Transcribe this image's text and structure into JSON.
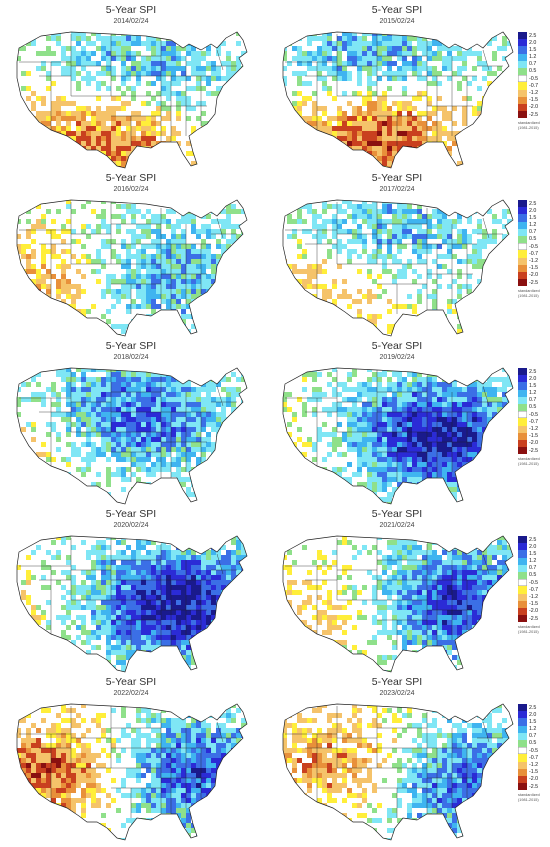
{
  "panels": [
    {
      "title": "5-Year SPI",
      "date": "2014/02/24",
      "wet": 0.38,
      "dry": 0.5,
      "dryCenter": [
        0.38,
        0.72
      ],
      "wetCenter": [
        0.55,
        0.28
      ],
      "legend": false
    },
    {
      "title": "5-Year SPI",
      "date": "2015/02/24",
      "wet": 0.4,
      "dry": 0.55,
      "dryCenter": [
        0.42,
        0.72
      ],
      "wetCenter": [
        0.4,
        0.2
      ],
      "legend": true
    },
    {
      "title": "5-Year SPI",
      "date": "2016/02/24",
      "wet": 0.45,
      "dry": 0.35,
      "dryCenter": [
        0.15,
        0.6
      ],
      "wetCenter": [
        0.62,
        0.55
      ],
      "legend": false
    },
    {
      "title": "5-Year SPI",
      "date": "2017/02/24",
      "wet": 0.42,
      "dry": 0.3,
      "dryCenter": [
        0.25,
        0.55
      ],
      "wetCenter": [
        0.45,
        0.3
      ],
      "legend": true
    },
    {
      "title": "5-Year SPI",
      "date": "2018/02/24",
      "wet": 0.6,
      "dry": 0.2,
      "dryCenter": [
        0.1,
        0.55
      ],
      "wetCenter": [
        0.5,
        0.35
      ],
      "legend": false
    },
    {
      "title": "5-Year SPI",
      "date": "2019/02/24",
      "wet": 0.78,
      "dry": 0.12,
      "dryCenter": [
        0.15,
        0.6
      ],
      "wetCenter": [
        0.65,
        0.5
      ],
      "legend": true
    },
    {
      "title": "5-Year SPI",
      "date": "2020/02/24",
      "wet": 0.82,
      "dry": 0.12,
      "dryCenter": [
        0.12,
        0.55
      ],
      "wetCenter": [
        0.68,
        0.5
      ],
      "legend": false
    },
    {
      "title": "5-Year SPI",
      "date": "2021/02/24",
      "wet": 0.7,
      "dry": 0.3,
      "dryCenter": [
        0.28,
        0.55
      ],
      "wetCenter": [
        0.7,
        0.5
      ],
      "legend": true
    },
    {
      "title": "5-Year SPI",
      "date": "2022/02/24",
      "wet": 0.65,
      "dry": 0.55,
      "dryCenter": [
        0.2,
        0.5
      ],
      "wetCenter": [
        0.75,
        0.5
      ],
      "legend": false
    },
    {
      "title": "5-Year SPI",
      "date": "2023/02/24",
      "wet": 0.6,
      "dry": 0.45,
      "dryCenter": [
        0.3,
        0.45
      ],
      "wetCenter": [
        0.75,
        0.55
      ],
      "legend": true
    }
  ],
  "legend": {
    "items": [
      {
        "label": "2.5",
        "color": "#1a1a8c"
      },
      {
        "label": "2.0",
        "color": "#2b2bd6"
      },
      {
        "label": "1.5",
        "color": "#3b6fe6"
      },
      {
        "label": "1.2",
        "color": "#3fb4f0"
      },
      {
        "label": "0.7",
        "color": "#7fe6f5"
      },
      {
        "label": "0.5",
        "color": "#8fe08a"
      },
      {
        "label": "-0.5",
        "color": "#ffffff"
      },
      {
        "label": "-0.7",
        "color": "#ffee3a"
      },
      {
        "label": "-1.2",
        "color": "#f5c36a"
      },
      {
        "label": "-1.5",
        "color": "#e8903a"
      },
      {
        "label": "-2.0",
        "color": "#c9401f"
      },
      {
        "label": "-2.5",
        "color": "#8a1010"
      }
    ],
    "note1": "standardized",
    "note2": "(1981-2015)"
  }
}
